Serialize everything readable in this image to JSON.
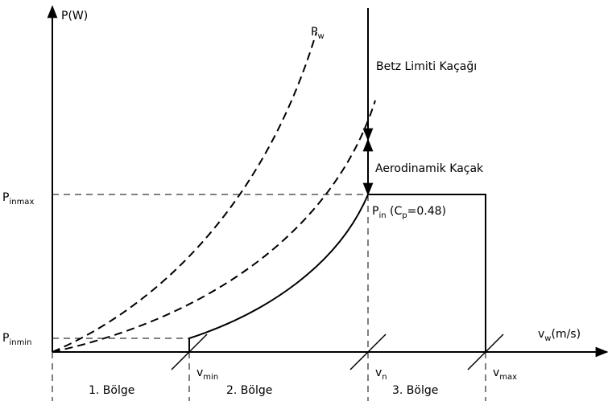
{
  "y_axis_label": "P(W)",
  "pw_label": {
    "base": "P",
    "sub": "w"
  },
  "betz_label": "Betz Limiti Kaçağı",
  "aero_label": "Aerodinamik Kaçak",
  "pinmax_label": {
    "base": "P",
    "sub": "inmax"
  },
  "pinmin_label": {
    "base": "P",
    "sub": "inmin"
  },
  "pin_label": {
    "parts": [
      "P",
      "in",
      " (C",
      "p",
      "=0.48)"
    ]
  },
  "x_axis_label": {
    "base": "v",
    "sub": "w",
    "rest": "(m/s)"
  },
  "vmin_label": {
    "base": "v",
    "sub": "min"
  },
  "vn_label": {
    "base": "v",
    "sub": "n"
  },
  "vmax_label": {
    "base": "v",
    "sub": "max"
  },
  "regions": [
    "1. Bölge",
    "2. Bölge",
    "3. Bölge"
  ]
}
